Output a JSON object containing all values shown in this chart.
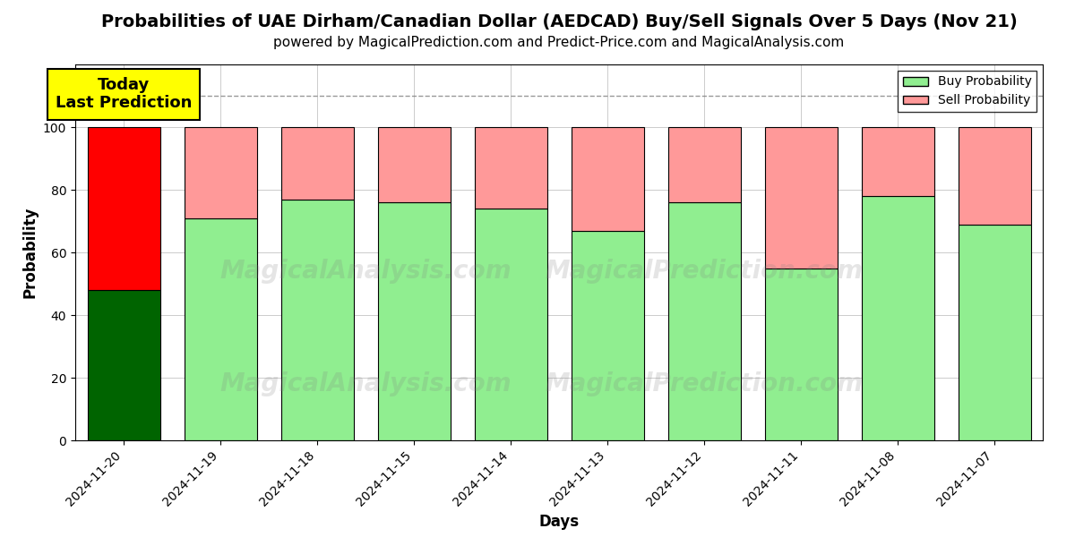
{
  "title": "Probabilities of UAE Dirham/Canadian Dollar (AEDCAD) Buy/Sell Signals Over 5 Days (Nov 21)",
  "subtitle": "powered by MagicalPrediction.com and Predict-Price.com and MagicalAnalysis.com",
  "xlabel": "Days",
  "ylabel": "Probability",
  "categories": [
    "2024-11-20",
    "2024-11-19",
    "2024-11-18",
    "2024-11-15",
    "2024-11-14",
    "2024-11-13",
    "2024-11-12",
    "2024-11-11",
    "2024-11-08",
    "2024-11-07"
  ],
  "buy_values": [
    48,
    71,
    77,
    76,
    74,
    67,
    76,
    55,
    78,
    69
  ],
  "sell_values": [
    52,
    29,
    23,
    24,
    26,
    33,
    24,
    45,
    22,
    31
  ],
  "buy_colors": [
    "#006400",
    "#90EE90",
    "#90EE90",
    "#90EE90",
    "#90EE90",
    "#90EE90",
    "#90EE90",
    "#90EE90",
    "#90EE90",
    "#90EE90"
  ],
  "sell_colors": [
    "#FF0000",
    "#FF9999",
    "#FF9999",
    "#FF9999",
    "#FF9999",
    "#FF9999",
    "#FF9999",
    "#FF9999",
    "#FF9999",
    "#FF9999"
  ],
  "today_label": "Today\nLast Prediction",
  "legend_buy_label": "Buy Probability",
  "legend_sell_label": "Sell Probability",
  "ylim": [
    0,
    120
  ],
  "yticks": [
    0,
    20,
    40,
    60,
    80,
    100
  ],
  "dashed_line_y": 110,
  "background_color": "#ffffff",
  "grid_color": "#aaaaaa",
  "bar_edge_color": "#000000",
  "today_box_color": "#ffff00",
  "title_fontsize": 14,
  "subtitle_fontsize": 11,
  "label_fontsize": 12
}
